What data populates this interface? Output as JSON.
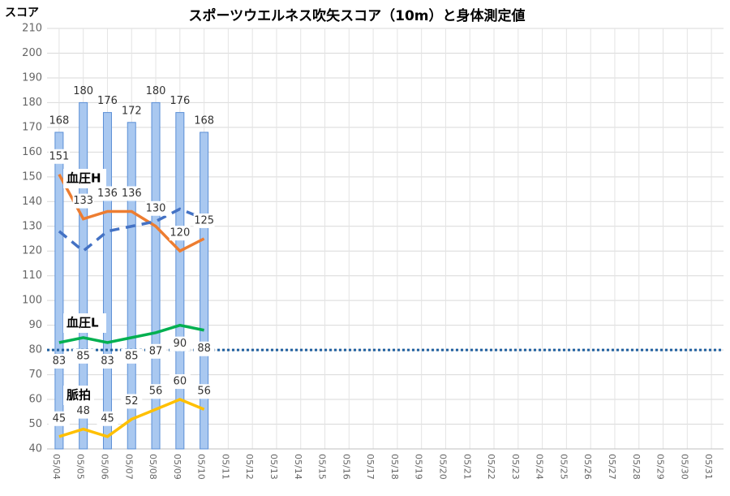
{
  "chart_data": {
    "type": "bar_line",
    "title": "スポーツウエルネス吹矢スコア（10m）と身体測定値",
    "y_label": "スコア",
    "categories": [
      "05/04",
      "05/05",
      "05/06",
      "05/07",
      "05/08",
      "05/09",
      "05/10",
      "05/11",
      "05/12",
      "05/13",
      "05/14",
      "05/15",
      "05/16",
      "05/17",
      "05/18",
      "05/19",
      "05/20",
      "05/21",
      "05/22",
      "05/23",
      "05/24",
      "05/25",
      "05/26",
      "05/27",
      "05/28",
      "05/29",
      "05/30",
      "05/31"
    ],
    "series": [
      {
        "type": "bar",
        "color": "#a9c8f0",
        "values": [
          168,
          180,
          176,
          172,
          180,
          176,
          168,
          null,
          null,
          null,
          null,
          null,
          null,
          null,
          null,
          null,
          null,
          null,
          null,
          null,
          null,
          null,
          null,
          null,
          null,
          null,
          null,
          null
        ]
      },
      {
        "type": "line",
        "name": "血圧H",
        "color": "#ed7d31",
        "values": [
          151,
          133,
          136,
          136,
          130,
          120,
          125,
          null,
          null,
          null,
          null,
          null,
          null,
          null,
          null,
          null,
          null,
          null,
          null,
          null,
          null,
          null,
          null,
          null,
          null,
          null,
          null,
          null
        ]
      },
      {
        "type": "line",
        "dashed": true,
        "color": "#4472c4",
        "values": [
          128,
          120,
          128,
          130,
          132,
          137,
          133,
          null,
          null,
          null,
          null,
          null,
          null,
          null,
          null,
          null,
          null,
          null,
          null,
          null,
          null,
          null,
          null,
          null,
          null,
          null,
          null,
          null
        ]
      },
      {
        "type": "line",
        "name": "血圧L",
        "color": "#00b050",
        "values": [
          83,
          85,
          83,
          85,
          87,
          90,
          88,
          null,
          null,
          null,
          null,
          null,
          null,
          null,
          null,
          null,
          null,
          null,
          null,
          null,
          null,
          null,
          null,
          null,
          null,
          null,
          null,
          null
        ]
      },
      {
        "type": "line",
        "name": "脈拍",
        "color": "#ffc000",
        "values": [
          45,
          48,
          45,
          52,
          56,
          60,
          56,
          null,
          null,
          null,
          null,
          null,
          null,
          null,
          null,
          null,
          null,
          null,
          null,
          null,
          null,
          null,
          null,
          null,
          null,
          null,
          null,
          null
        ]
      }
    ],
    "reference_line": 80,
    "ylim": [
      40,
      210
    ],
    "yticks": [
      40,
      50,
      60,
      70,
      80,
      90,
      100,
      110,
      120,
      130,
      140,
      150,
      160,
      170,
      180,
      190,
      200,
      210
    ],
    "grid": true
  }
}
